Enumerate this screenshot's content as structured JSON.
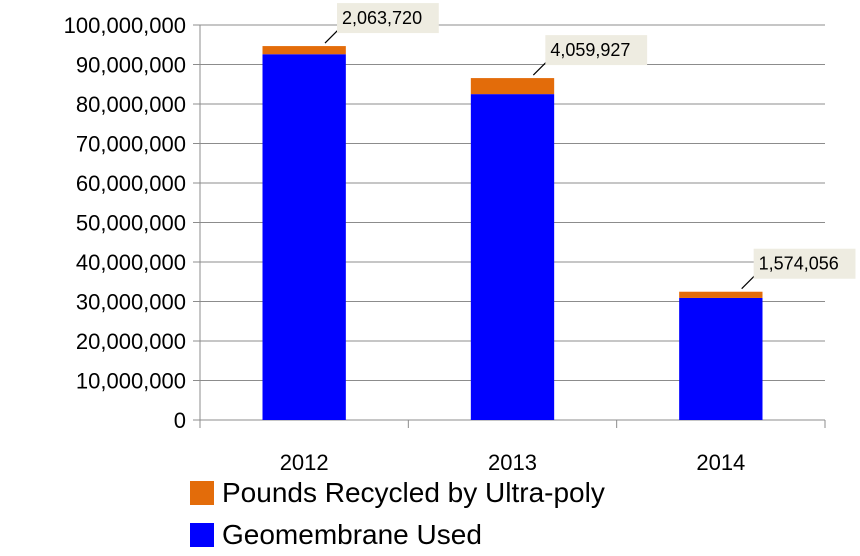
{
  "chart_data": {
    "type": "bar",
    "stacked": true,
    "categories": [
      "2012",
      "2013",
      "2014"
    ],
    "series": [
      {
        "name": "Geomembrane Used",
        "color": "#0000ff",
        "values": [
          92600000,
          82500000,
          30900000
        ]
      },
      {
        "name": "Pounds Recycled by Ultra-poly",
        "color": "#e36c0a",
        "values": [
          2063720,
          4059927,
          1574056
        ]
      }
    ],
    "data_labels": [
      "2,063,720",
      "4,059,927",
      "1,574,056"
    ],
    "y_ticks": [
      "0",
      "10,000,000",
      "20,000,000",
      "30,000,000",
      "40,000,000",
      "50,000,000",
      "60,000,000",
      "70,000,000",
      "80,000,000",
      "90,000,000",
      "100,000,000"
    ],
    "ylim": [
      0,
      100000000
    ],
    "grid": true,
    "legend_position": "bottom",
    "legend_order": [
      "Pounds Recycled by Ultra-poly",
      "Geomembrane Used"
    ],
    "label_background": "#eeece1",
    "title": "",
    "xlabel": "",
    "ylabel": ""
  }
}
